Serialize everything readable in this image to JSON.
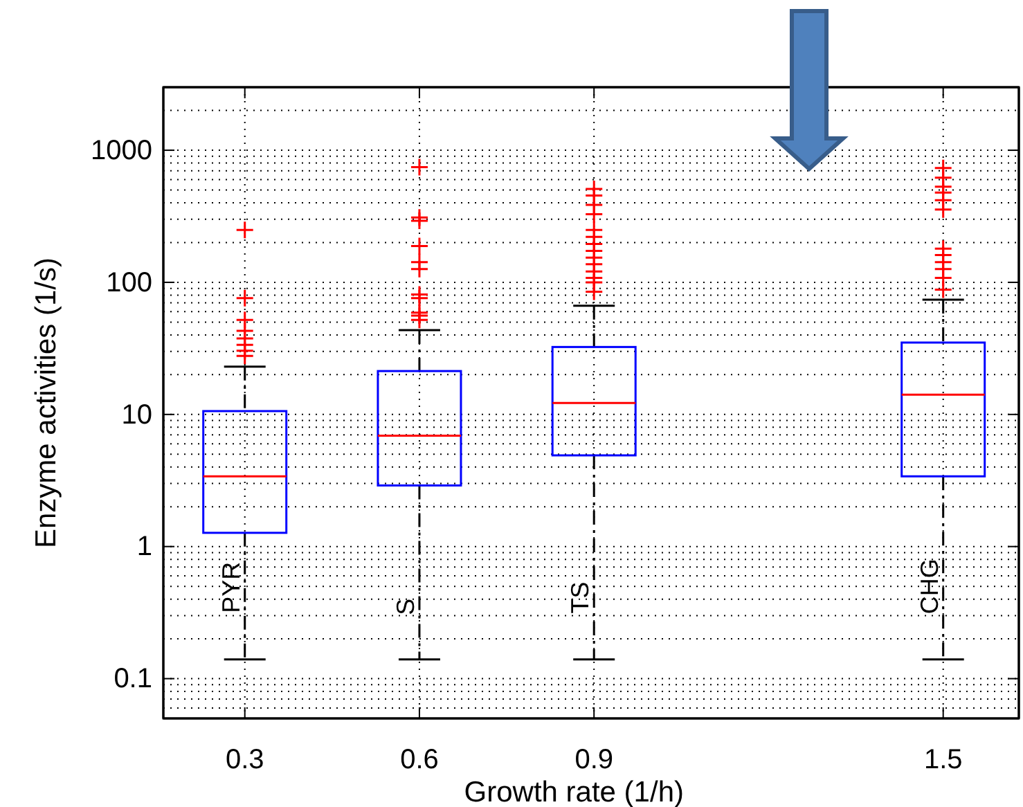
{
  "chart_data": {
    "type": "box",
    "xlabel": "Growth rate (1/h)",
    "ylabel": "Enzyme activities (1/s)",
    "x": [
      0.3,
      0.6,
      0.9,
      1.5
    ],
    "xlim": [
      0.16,
      1.63
    ],
    "xticks": [
      0.3,
      0.6,
      0.9,
      1.5
    ],
    "ylim": [
      0.05,
      3000
    ],
    "yticks": [
      0.1,
      1,
      10,
      100,
      1000
    ],
    "log": true,
    "grid": true,
    "marker": "cross",
    "series": [
      {
        "color": "#0000ff",
        "boxes": [
          {
            "low": 0.14,
            "q1": 1.27,
            "median": 3.4,
            "q3": 10.6,
            "high": 23,
            "outliers": [
              249,
              76,
              52,
              43,
              37.6,
              33.6,
              30.4,
              27.7
            ]
          },
          {
            "low": 0.14,
            "q1": 2.9,
            "median": 6.9,
            "q3": 21.3,
            "high": 43.5,
            "outliers": [
              745,
              310,
              292,
              188,
              142,
              126,
              81,
              76,
              59,
              56,
              52
            ]
          },
          {
            "low": 0.14,
            "q1": 4.9,
            "median": 12.2,
            "q3": 32.4,
            "high": 66.5,
            "outliers": [
              510,
              454,
              386,
              328,
              249,
              221,
              195,
              173,
              154,
              137,
              121,
              108,
              100,
              85
            ]
          },
          {
            "low": 0.14,
            "q1": 3.4,
            "median": 14.1,
            "q3": 35,
            "high": 74,
            "outliers": [
              733,
              620,
              530,
              478,
              418,
              356,
              180,
              161,
              142,
              126,
              108,
              88
            ]
          }
        ]
      }
    ],
    "annotations": [
      {
        "text": "PYR",
        "x": 0.3,
        "y": 0.49
      },
      {
        "text": "S",
        "x": 0.6,
        "y": 0.35
      },
      {
        "text": "TS",
        "x": 0.9,
        "y": 0.41
      },
      {
        "text": "CHG",
        "x": 1.5,
        "y": 0.5
      }
    ]
  }
}
